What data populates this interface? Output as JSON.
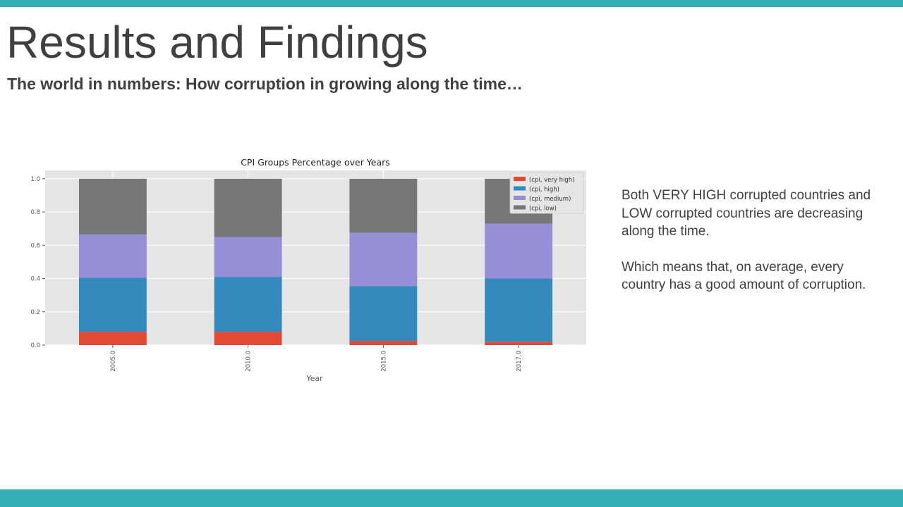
{
  "slide": {
    "title": "Results and Findings",
    "subtitle": "The world in numbers: How corruption in growing along the time…",
    "accent_color": "#33AEB6",
    "text_color": "#404040"
  },
  "notes": {
    "paragraph1": "Both VERY HIGH corrupted countries and LOW corrupted countries are decreasing along the time.",
    "paragraph2": "Which means that, on average, every country has a good amount of corruption."
  },
  "chart_data": {
    "type": "bar",
    "stacked": true,
    "title": "CPI Groups Percentage over Years",
    "xlabel": "Year",
    "ylabel": "",
    "categories": [
      "2005.0",
      "2010.0",
      "2015.0",
      "2017.0"
    ],
    "ylim": [
      0,
      1.05
    ],
    "yticks": [
      "0.0",
      "0.2",
      "0.4",
      "0.6",
      "0.8",
      "1.0"
    ],
    "grid": true,
    "legend_position": "top-right",
    "series": [
      {
        "name": "(cpi, very high)",
        "color": "#E24A33",
        "values": [
          0.08,
          0.08,
          0.025,
          0.02
        ]
      },
      {
        "name": "(cpi, high)",
        "color": "#348ABD",
        "values": [
          0.325,
          0.33,
          0.33,
          0.38
        ]
      },
      {
        "name": "(cpi, medium)",
        "color": "#988ED5",
        "values": [
          0.26,
          0.24,
          0.32,
          0.33
        ]
      },
      {
        "name": "(cpi, low)",
        "color": "#777777",
        "values": [
          0.335,
          0.35,
          0.325,
          0.27
        ]
      }
    ]
  }
}
